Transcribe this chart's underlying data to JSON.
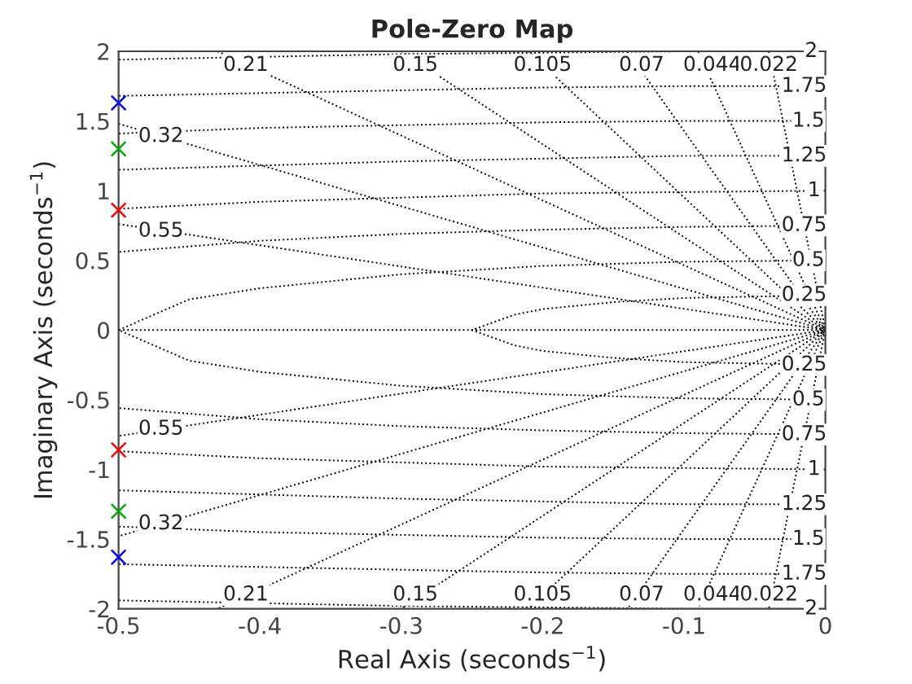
{
  "chart_data": {
    "type": "scatter",
    "title": "Pole-Zero Map",
    "xlabel": "Real Axis (seconds$^{−1}$)",
    "ylabel": "Imaginary Axis (seconds$^{−1}$)",
    "xlim": [
      -0.5,
      0
    ],
    "ylim": [
      -2,
      2
    ],
    "xticks": [
      -0.5,
      -0.4,
      -0.3,
      -0.2,
      -0.1,
      0
    ],
    "yticks": [
      -2,
      -1.5,
      -1,
      -0.5,
      0,
      0.5,
      1,
      1.5,
      2
    ],
    "grid": false,
    "legend": false,
    "series": [
      {
        "type": "line",
        "color": "#000000",
        "line_style": "dotted",
        "x": [
          0,
          -0.5
        ],
        "values": [
          0,
          0
        ]
      },
      {
        "type": "line",
        "color": "#000000",
        "line_style": "dotted",
        "x": [
          -0.5,
          0,
          -0.5
        ],
        "values": [
          0.76,
          0,
          -0.76
        ]
      },
      {
        "type": "line",
        "color": "#000000",
        "line_style": "dotted",
        "x": [
          -0.5,
          0,
          -0.5
        ],
        "values": [
          1.48,
          0,
          -1.48
        ]
      },
      {
        "type": "line",
        "color": "#000000",
        "line_style": "dotted",
        "x": [
          -0.43,
          0,
          -0.43
        ],
        "values": [
          2,
          0,
          -2
        ]
      },
      {
        "type": "line",
        "color": "#000000",
        "line_style": "dotted",
        "x": [
          -0.3,
          0,
          -0.3
        ],
        "values": [
          2,
          0,
          -2
        ]
      },
      {
        "type": "line",
        "color": "#000000",
        "line_style": "dotted",
        "x": [
          -0.21,
          0,
          -0.21
        ],
        "values": [
          2,
          0,
          -2
        ]
      },
      {
        "type": "line",
        "color": "#000000",
        "line_style": "dotted",
        "x": [
          -0.14,
          0,
          -0.14
        ],
        "values": [
          2,
          0,
          -2
        ]
      },
      {
        "type": "line",
        "color": "#000000",
        "line_style": "dotted",
        "x": [
          -0.09,
          0,
          -0.09
        ],
        "values": [
          2,
          0,
          -2
        ]
      },
      {
        "type": "line",
        "color": "#000000",
        "line_style": "dotted",
        "x": [
          -0.04,
          0,
          -0.04
        ],
        "values": [
          2,
          0,
          -2
        ]
      },
      {
        "type": "line",
        "color": "#000000",
        "line_style": "dotted",
        "x": [
          0,
          -0.1,
          -0.15,
          -0.2,
          -0.22,
          -0.25,
          -0.22,
          -0.2,
          -0.15,
          -0.1,
          0
        ],
        "values": [
          0.25,
          0.23,
          0.2,
          0.15,
          0.11,
          0,
          -0.11,
          -0.15,
          -0.2,
          -0.23,
          -0.25
        ]
      },
      {
        "type": "line",
        "color": "#000000",
        "line_style": "dotted",
        "x": [
          0,
          -0.1,
          -0.2,
          -0.3,
          -0.4,
          -0.45,
          -0.5,
          -0.45,
          -0.4,
          -0.3,
          -0.2,
          -0.1,
          0
        ],
        "values": [
          0.5,
          0.49,
          0.46,
          0.4,
          0.3,
          0.22,
          0,
          -0.22,
          -0.3,
          -0.4,
          -0.46,
          -0.49,
          -0.5
        ]
      },
      {
        "type": "line",
        "color": "#000000",
        "line_style": "dotted",
        "x": [
          0,
          -0.1,
          -0.2,
          -0.3,
          -0.4,
          -0.5
        ],
        "values": [
          0.75,
          0.74,
          0.72,
          0.69,
          0.64,
          0.56
        ]
      },
      {
        "type": "line",
        "color": "#000000",
        "line_style": "dotted",
        "x": [
          0,
          -0.1,
          -0.2,
          -0.3,
          -0.4,
          -0.5
        ],
        "values": [
          -0.75,
          -0.74,
          -0.72,
          -0.69,
          -0.64,
          -0.56
        ]
      },
      {
        "type": "line",
        "color": "#000000",
        "line_style": "dotted",
        "x": [
          0,
          -0.1,
          -0.2,
          -0.3,
          -0.4,
          -0.5
        ],
        "values": [
          1,
          0.99,
          0.98,
          0.95,
          0.92,
          0.87
        ]
      },
      {
        "type": "line",
        "color": "#000000",
        "line_style": "dotted",
        "x": [
          0,
          -0.1,
          -0.2,
          -0.3,
          -0.4,
          -0.5
        ],
        "values": [
          -1,
          -0.99,
          -0.98,
          -0.95,
          -0.92,
          -0.87
        ]
      },
      {
        "type": "line",
        "color": "#000000",
        "line_style": "dotted",
        "x": [
          0,
          -0.1,
          -0.2,
          -0.3,
          -0.4,
          -0.5
        ],
        "values": [
          1.25,
          1.25,
          1.23,
          1.21,
          1.18,
          1.15
        ]
      },
      {
        "type": "line",
        "color": "#000000",
        "line_style": "dotted",
        "x": [
          0,
          -0.1,
          -0.2,
          -0.3,
          -0.4,
          -0.5
        ],
        "values": [
          -1.25,
          -1.25,
          -1.23,
          -1.21,
          -1.18,
          -1.15
        ]
      },
      {
        "type": "line",
        "color": "#000000",
        "line_style": "dotted",
        "x": [
          0,
          -0.1,
          -0.2,
          -0.3,
          -0.4,
          -0.5
        ],
        "values": [
          1.5,
          1.5,
          1.49,
          1.47,
          1.45,
          1.41
        ]
      },
      {
        "type": "line",
        "color": "#000000",
        "line_style": "dotted",
        "x": [
          0,
          -0.1,
          -0.2,
          -0.3,
          -0.4,
          -0.5
        ],
        "values": [
          -1.5,
          -1.5,
          -1.49,
          -1.47,
          -1.45,
          -1.41
        ]
      },
      {
        "type": "line",
        "color": "#000000",
        "line_style": "dotted",
        "x": [
          0,
          -0.1,
          -0.2,
          -0.3,
          -0.4,
          -0.5
        ],
        "values": [
          1.75,
          1.75,
          1.74,
          1.72,
          1.7,
          1.68
        ]
      },
      {
        "type": "line",
        "color": "#000000",
        "line_style": "dotted",
        "x": [
          0,
          -0.1,
          -0.2,
          -0.3,
          -0.4,
          -0.5
        ],
        "values": [
          -1.75,
          -1.75,
          -1.74,
          -1.72,
          -1.7,
          -1.68
        ]
      },
      {
        "type": "line",
        "color": "#000000",
        "line_style": "dotted",
        "x": [
          0,
          -0.1,
          -0.2,
          -0.3,
          -0.4,
          -0.5
        ],
        "values": [
          2,
          2,
          1.99,
          1.98,
          1.96,
          1.94
        ]
      },
      {
        "type": "line",
        "color": "#000000",
        "line_style": "dotted",
        "x": [
          0,
          -0.1,
          -0.2,
          -0.3,
          -0.4,
          -0.5
        ],
        "values": [
          -2,
          -2,
          -1.99,
          -1.98,
          -1.96,
          -1.94
        ]
      },
      {
        "marker": "cross",
        "color": "#0000ff",
        "x": [
          -0.5,
          -0.5
        ],
        "values": [
          1.63,
          -1.63
        ]
      },
      {
        "marker": "cross",
        "color": "#00aa00",
        "x": [
          -0.5,
          -0.5
        ],
        "values": [
          1.3,
          -1.3
        ]
      },
      {
        "marker": "cross",
        "color": "#ff0000",
        "x": [
          -0.5,
          -0.5
        ],
        "values": [
          0.86,
          -0.86
        ]
      }
    ],
    "annotations": [
      {
        "text": "0.21",
        "x": -0.41,
        "y": 1.9
      },
      {
        "text": "0.15",
        "x": -0.29,
        "y": 1.9
      },
      {
        "text": "0.105",
        "x": -0.2,
        "y": 1.9
      },
      {
        "text": "0.07",
        "x": -0.13,
        "y": 1.9
      },
      {
        "text": "0.044",
        "x": -0.08,
        "y": 1.9
      },
      {
        "text": "0.022",
        "x": -0.04,
        "y": 1.9
      },
      {
        "text": "0.32",
        "x": -0.47,
        "y": 1.39
      },
      {
        "text": "0.55",
        "x": -0.47,
        "y": 0.71
      },
      {
        "text": "0.21",
        "x": -0.41,
        "y": -1.9
      },
      {
        "text": "0.15",
        "x": -0.29,
        "y": -1.9
      },
      {
        "text": "0.105",
        "x": -0.2,
        "y": -1.9
      },
      {
        "text": "0.07",
        "x": -0.13,
        "y": -1.9
      },
      {
        "text": "0.044",
        "x": -0.08,
        "y": -1.9
      },
      {
        "text": "0.022",
        "x": -0.04,
        "y": -1.9
      },
      {
        "text": "0.32",
        "x": -0.47,
        "y": -1.39
      },
      {
        "text": "0.55",
        "x": -0.47,
        "y": -0.71
      },
      {
        "text": "2",
        "x": -0.01,
        "y": 2
      },
      {
        "text": "1.75",
        "x": -0.015,
        "y": 1.75
      },
      {
        "text": "1.5",
        "x": -0.012,
        "y": 1.5
      },
      {
        "text": "1.25",
        "x": -0.015,
        "y": 1.25
      },
      {
        "text": "1",
        "x": -0.008,
        "y": 1
      },
      {
        "text": "0.75",
        "x": -0.015,
        "y": 0.75
      },
      {
        "text": "0.5",
        "x": -0.012,
        "y": 0.5
      },
      {
        "text": "0.25",
        "x": -0.015,
        "y": 0.25
      },
      {
        "text": "0.25",
        "x": -0.015,
        "y": -0.25
      },
      {
        "text": "0.5",
        "x": -0.012,
        "y": -0.5
      },
      {
        "text": "0.75",
        "x": -0.015,
        "y": -0.75
      },
      {
        "text": "1",
        "x": -0.008,
        "y": -1
      },
      {
        "text": "1.25",
        "x": -0.015,
        "y": -1.25
      },
      {
        "text": "1.5",
        "x": -0.012,
        "y": -1.5
      },
      {
        "text": "1.75",
        "x": -0.015,
        "y": -1.75
      },
      {
        "text": "2",
        "x": -0.01,
        "y": -2
      }
    ]
  }
}
